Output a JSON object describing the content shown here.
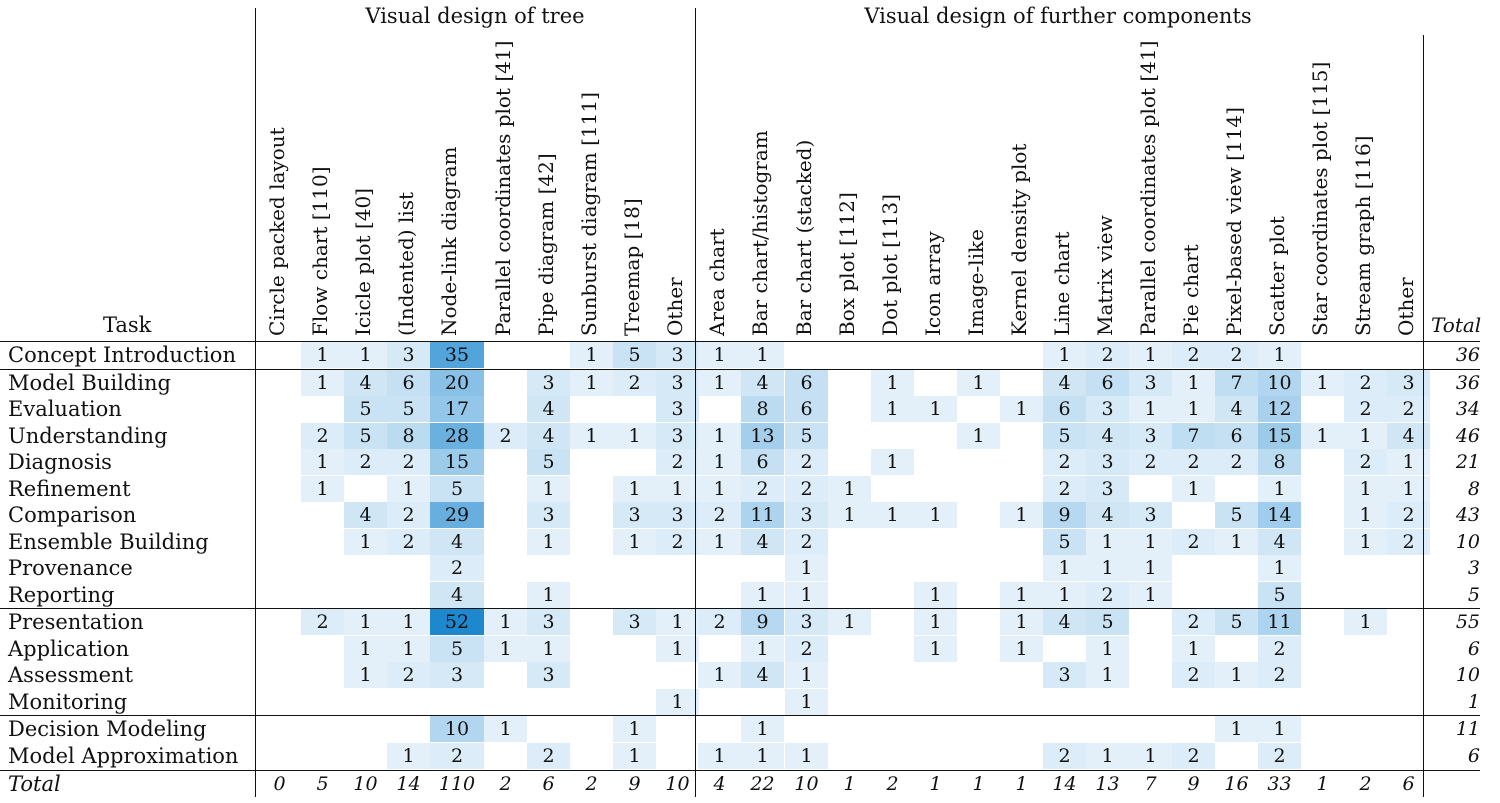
{
  "groups": {
    "tree": "Visual design of tree",
    "further": "Visual design of further components"
  },
  "task_header": "Task",
  "total_header": "Total",
  "columns": [
    "Circle packed layout",
    "Flow chart [110]",
    "Icicle plot [40]",
    "(Indented) list",
    "Node-link diagram",
    "Parallel coordinates plot [41]",
    "Pipe diagram [42]",
    "Sunburst diagram [111]",
    "Treemap [18]",
    "Other",
    "Area chart",
    "Bar chart/histogram",
    "Bar chart (stacked)",
    "Box plot [112]",
    "Dot plot [113]",
    "Icon array",
    "Image-like",
    "Kernel density plot",
    "Line chart",
    "Matrix view",
    "Parallel coordinates plot [41]",
    "Pie chart",
    "Pixel-based view [114]",
    "Scatter plot",
    "Star coordinates plot [115]",
    "Stream graph [116]",
    "Other"
  ],
  "rows": [
    {
      "task": "Concept Introduction",
      "values": [
        "",
        "1",
        "1",
        "3",
        "35",
        "",
        "",
        "1",
        "5",
        "3",
        "1",
        "1",
        "",
        "",
        "",
        "",
        "",
        "",
        "1",
        "2",
        "1",
        "2",
        "2",
        "1",
        "",
        "",
        ""
      ],
      "total": "36"
    },
    {
      "task": "Model Building",
      "values": [
        "",
        "1",
        "4",
        "6",
        "20",
        "",
        "3",
        "1",
        "2",
        "3",
        "1",
        "4",
        "6",
        "",
        "1",
        "",
        "1",
        "",
        "4",
        "6",
        "3",
        "1",
        "7",
        "10",
        "1",
        "2",
        "3"
      ],
      "total": "36"
    },
    {
      "task": "Evaluation",
      "values": [
        "",
        "",
        "5",
        "5",
        "17",
        "",
        "4",
        "",
        "",
        "3",
        "",
        "8",
        "6",
        "",
        "1",
        "1",
        "",
        "1",
        "6",
        "3",
        "1",
        "1",
        "4",
        "12",
        "",
        "2",
        "2"
      ],
      "total": "34"
    },
    {
      "task": "Understanding",
      "values": [
        "",
        "2",
        "5",
        "8",
        "28",
        "2",
        "4",
        "1",
        "1",
        "3",
        "1",
        "13",
        "5",
        "",
        "",
        "",
        "1",
        "",
        "5",
        "4",
        "3",
        "7",
        "6",
        "15",
        "1",
        "1",
        "4"
      ],
      "total": "46"
    },
    {
      "task": "Diagnosis",
      "values": [
        "",
        "1",
        "2",
        "2",
        "15",
        "",
        "5",
        "",
        "",
        "2",
        "1",
        "6",
        "2",
        "",
        "1",
        "",
        "",
        "",
        "2",
        "3",
        "2",
        "2",
        "2",
        "8",
        "",
        "2",
        "1"
      ],
      "total": "21"
    },
    {
      "task": "Refinement",
      "values": [
        "",
        "1",
        "",
        "1",
        "5",
        "",
        "1",
        "",
        "1",
        "1",
        "1",
        "2",
        "2",
        "1",
        "",
        "",
        "",
        "",
        "2",
        "3",
        "",
        "1",
        "",
        "1",
        "",
        "1",
        "1"
      ],
      "total": "8"
    },
    {
      "task": "Comparison",
      "values": [
        "",
        "",
        "4",
        "2",
        "29",
        "",
        "3",
        "",
        "3",
        "3",
        "2",
        "11",
        "3",
        "1",
        "1",
        "1",
        "",
        "1",
        "9",
        "4",
        "3",
        "",
        "5",
        "14",
        "",
        "1",
        "2"
      ],
      "total": "43"
    },
    {
      "task": "Ensemble Building",
      "values": [
        "",
        "",
        "1",
        "2",
        "4",
        "",
        "1",
        "",
        "1",
        "2",
        "1",
        "4",
        "2",
        "",
        "",
        "",
        "",
        "",
        "5",
        "1",
        "1",
        "2",
        "1",
        "4",
        "",
        "1",
        "2"
      ],
      "total": "10"
    },
    {
      "task": "Provenance",
      "values": [
        "",
        "",
        "",
        "",
        "2",
        "",
        "",
        "",
        "",
        "",
        "",
        "",
        "1",
        "",
        "",
        "",
        "",
        "",
        "1",
        "1",
        "1",
        "",
        "",
        "1",
        "",
        "",
        ""
      ],
      "total": "3"
    },
    {
      "task": "Reporting",
      "values": [
        "",
        "",
        "",
        "",
        "4",
        "",
        "1",
        "",
        "",
        "",
        "",
        "1",
        "1",
        "",
        "",
        "1",
        "",
        "1",
        "1",
        "2",
        "1",
        "",
        "",
        "5",
        "",
        "",
        ""
      ],
      "total": "5"
    },
    {
      "task": "Presentation",
      "values": [
        "",
        "2",
        "1",
        "1",
        "52",
        "1",
        "3",
        "",
        "3",
        "1",
        "2",
        "9",
        "3",
        "1",
        "",
        "1",
        "",
        "1",
        "4",
        "5",
        "",
        "2",
        "5",
        "11",
        "",
        "1",
        ""
      ],
      "total": "55"
    },
    {
      "task": "Application",
      "values": [
        "",
        "",
        "1",
        "1",
        "5",
        "1",
        "1",
        "",
        "",
        "1",
        "",
        "1",
        "2",
        "",
        "",
        "1",
        "",
        "1",
        "",
        "1",
        "",
        "1",
        "",
        "2",
        "",
        "",
        ""
      ],
      "total": "6"
    },
    {
      "task": "Assessment",
      "values": [
        "",
        "",
        "1",
        "2",
        "3",
        "",
        "3",
        "",
        "",
        "",
        "1",
        "4",
        "1",
        "",
        "",
        "",
        "",
        "",
        "3",
        "1",
        "",
        "2",
        "1",
        "2",
        "",
        "",
        ""
      ],
      "total": "10"
    },
    {
      "task": "Monitoring",
      "values": [
        "",
        "",
        "",
        "",
        "",
        "",
        "",
        "",
        "",
        "1",
        "",
        "",
        "1",
        "",
        "",
        "",
        "",
        "",
        "",
        "",
        "",
        "",
        "",
        "",
        "",
        "",
        ""
      ],
      "total": "1"
    },
    {
      "task": "Decision Modeling",
      "values": [
        "",
        "",
        "",
        "",
        "10",
        "1",
        "",
        "",
        "1",
        "",
        "",
        "1",
        "",
        "",
        "",
        "",
        "",
        "",
        "",
        "",
        "",
        "",
        "1",
        "1",
        "",
        "",
        ""
      ],
      "total": "11"
    },
    {
      "task": "Model Approximation",
      "values": [
        "",
        "",
        "",
        "1",
        "2",
        "",
        "2",
        "",
        "1",
        "",
        "1",
        "1",
        "1",
        "",
        "",
        "",
        "",
        "",
        "2",
        "1",
        "1",
        "2",
        "",
        "2",
        "",
        "",
        ""
      ],
      "total": "6"
    }
  ],
  "totals_row": {
    "label": "Total",
    "values": [
      "0",
      "5",
      "10",
      "14",
      "110",
      "2",
      "6",
      "2",
      "9",
      "10",
      "4",
      "22",
      "10",
      "1",
      "2",
      "1",
      "1",
      "1",
      "14",
      "13",
      "7",
      "9",
      "16",
      "33",
      "1",
      "2",
      "6"
    ]
  },
  "colors": {
    "max": "#1e88cf",
    "min": "#eef6fc"
  }
}
